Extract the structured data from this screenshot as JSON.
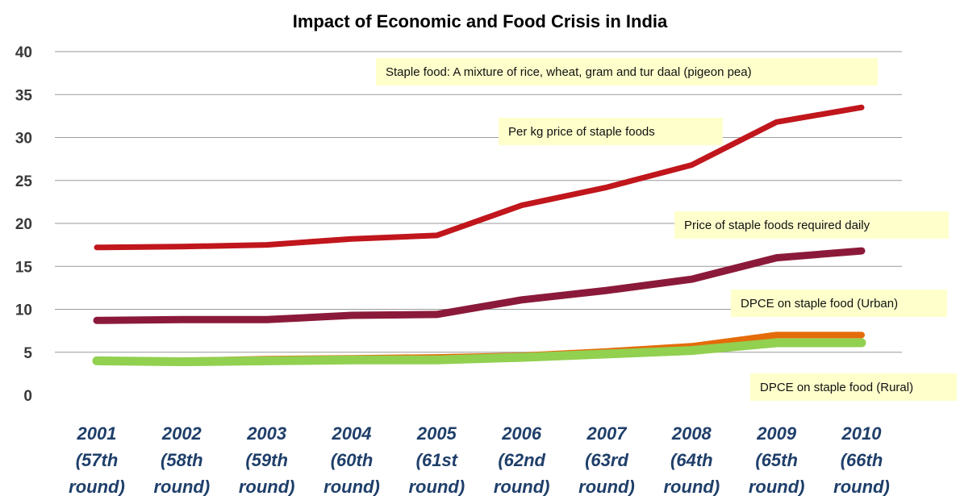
{
  "chart_data": {
    "type": "line",
    "title": "Impact of Economic and Food Crisis in India",
    "xlabel": "",
    "ylabel": "",
    "ylim": [
      0,
      40
    ],
    "yticks": [
      0,
      5,
      10,
      15,
      20,
      25,
      30,
      35,
      40
    ],
    "grid": true,
    "categories": [
      [
        "2001",
        "(57th",
        "round)"
      ],
      [
        "2002",
        "(58th",
        "round)"
      ],
      [
        "2003",
        "(59th",
        "round)"
      ],
      [
        "2004",
        "(60th",
        "round)"
      ],
      [
        "2005",
        "(61st",
        "round)"
      ],
      [
        "2006",
        "(62nd",
        "round)"
      ],
      [
        "2007",
        "(63rd",
        "round)"
      ],
      [
        "2008",
        "(64th",
        "round)"
      ],
      [
        "2009",
        "(65th",
        "round)"
      ],
      [
        "2010",
        "(66th",
        "round)"
      ]
    ],
    "series": [
      {
        "name": "Per kg price of staple foods",
        "color": "#c0161c",
        "values": [
          17.2,
          17.3,
          17.5,
          18.2,
          18.6,
          22.1,
          24.2,
          26.8,
          31.8,
          33.5
        ]
      },
      {
        "name": "Price of staple foods required daily",
        "color": "#8b1a3a",
        "values": [
          8.7,
          8.8,
          8.8,
          9.3,
          9.4,
          11.1,
          12.2,
          13.5,
          16.0,
          16.8
        ]
      },
      {
        "name": "DPCE on staple food (Urban)",
        "color": "#e46c0a",
        "values": [
          4.1,
          4.0,
          4.2,
          4.3,
          4.4,
          4.6,
          5.1,
          5.7,
          7.0,
          7.0
        ]
      },
      {
        "name": "DPCE on staple food (Rural)",
        "color": "#92d050",
        "values": [
          4.0,
          3.9,
          4.0,
          4.1,
          4.1,
          4.4,
          4.8,
          5.2,
          6.1,
          6.1
        ]
      }
    ],
    "annotations": [
      {
        "text": "Staple food: A mixture of rice, wheat, gram and tur daal (pigeon pea)"
      },
      {
        "text": "Per kg price of staple foods"
      },
      {
        "text": "Price of staple foods required daily"
      },
      {
        "text": "DPCE on staple food (Urban)"
      },
      {
        "text": "DPCE on staple food (Rural)"
      }
    ],
    "annotation_fill": "#ffffcc",
    "grid_color": "#9a9a9a"
  }
}
